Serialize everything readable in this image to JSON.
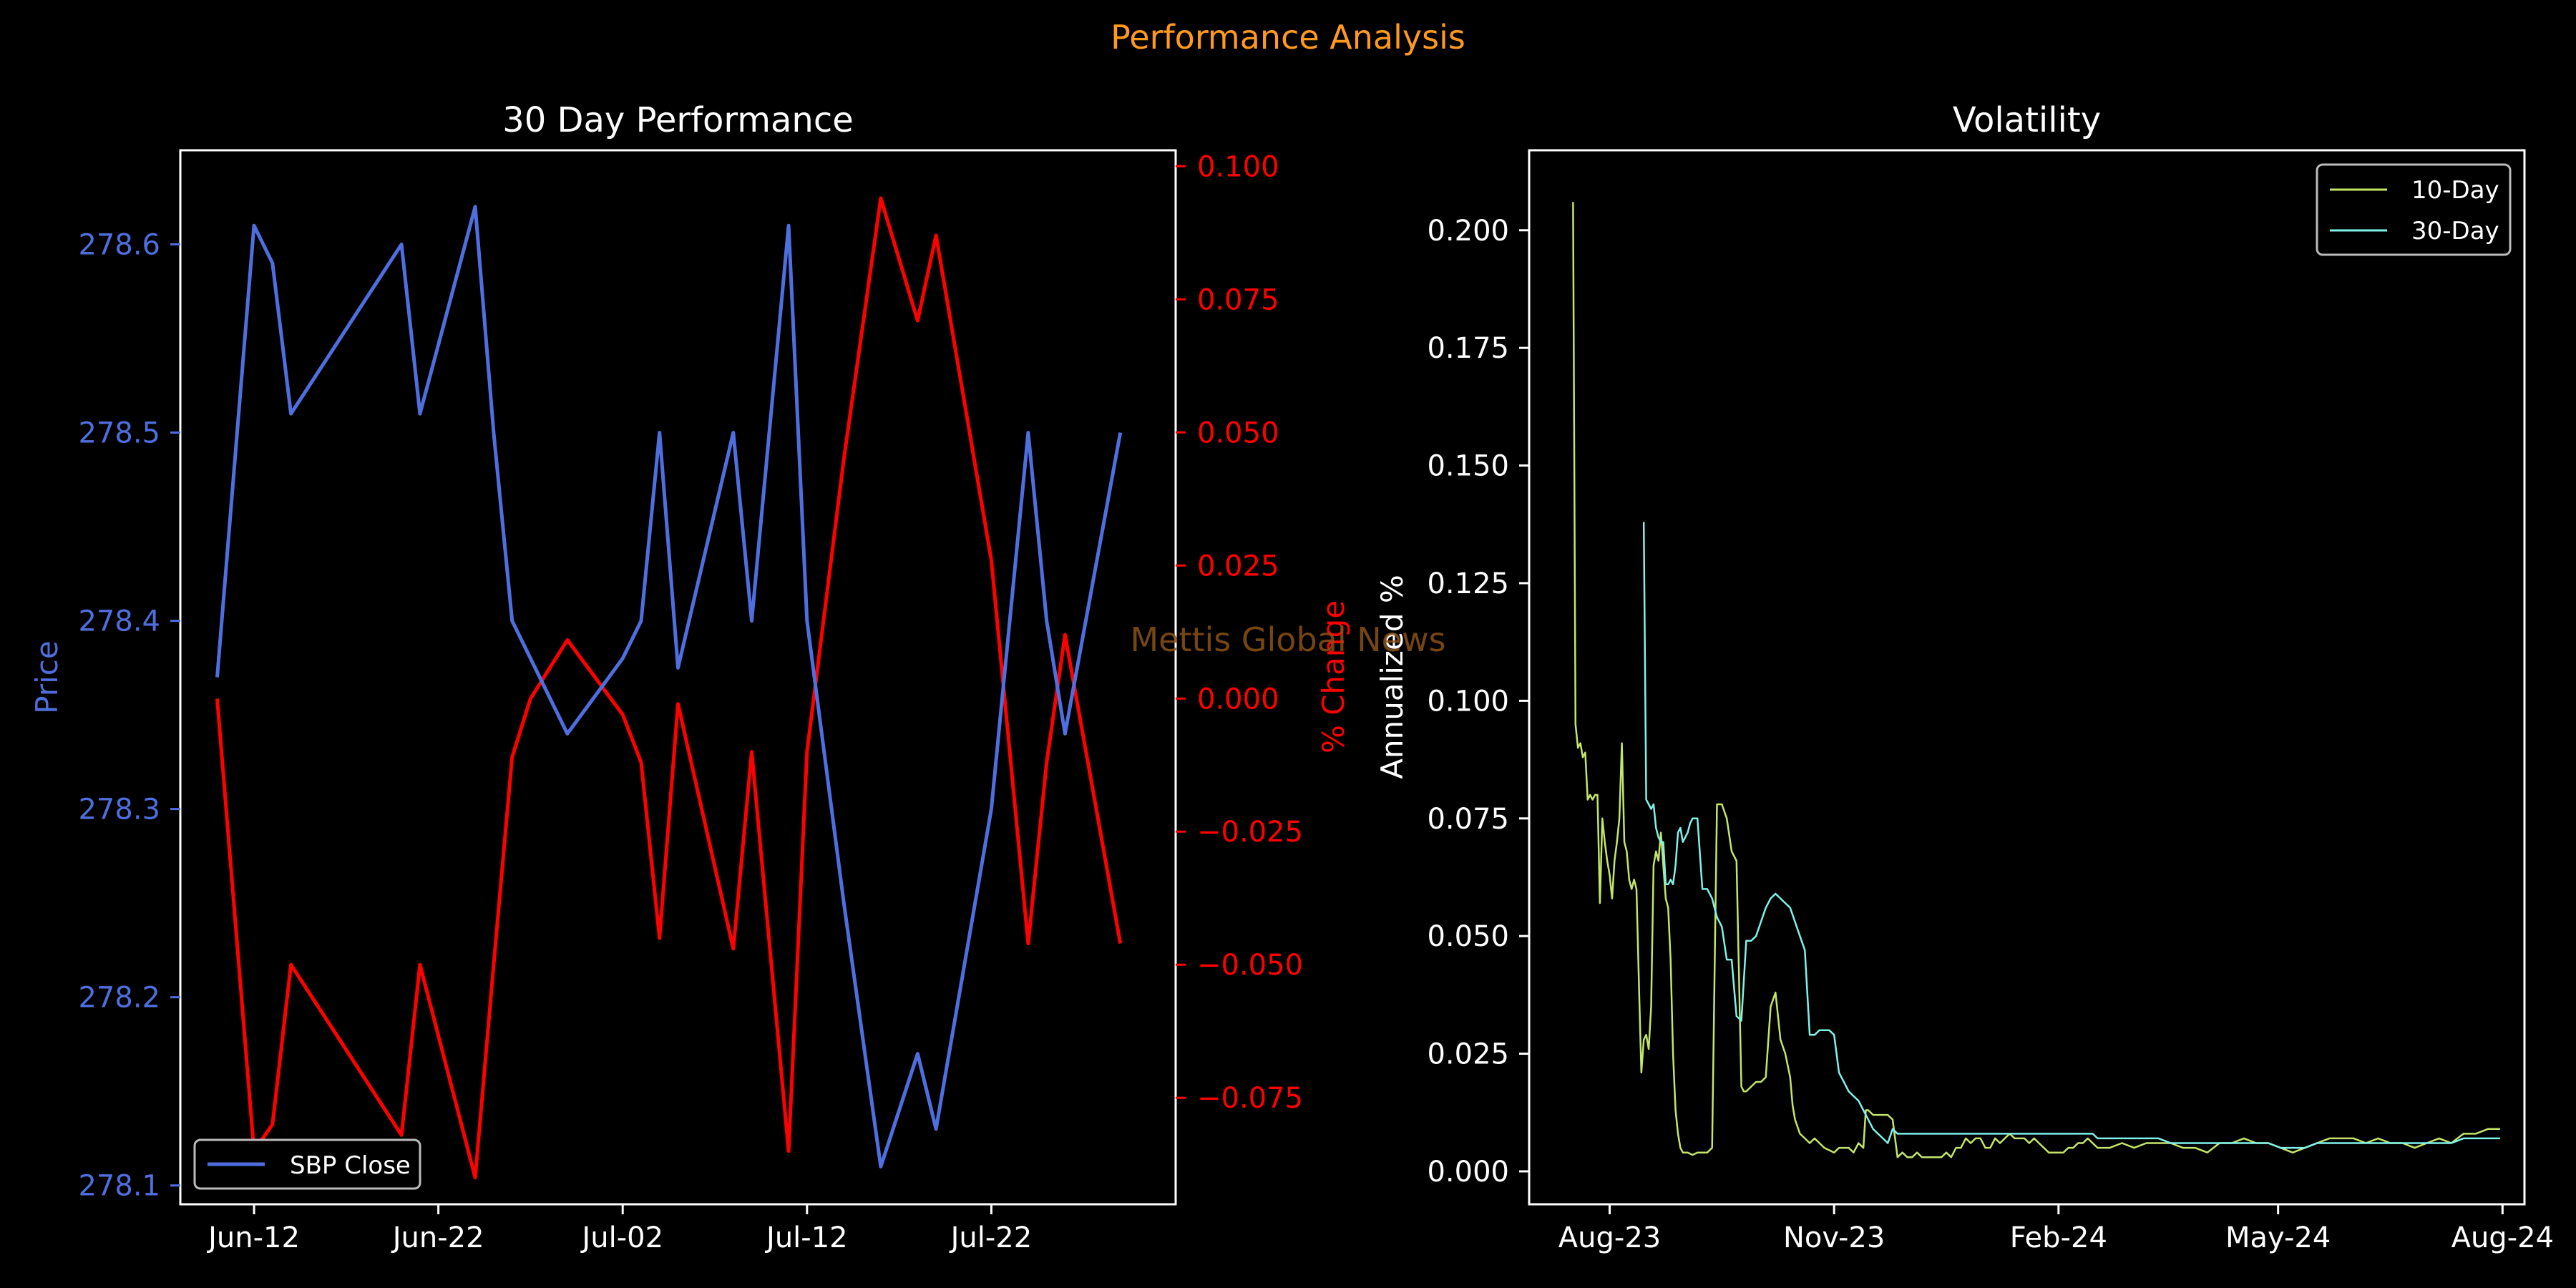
{
  "figure": {
    "title": "Performance Analysis",
    "watermark": "Mettis Global News",
    "colors": {
      "background": "#000000",
      "foreground": "#ffffff",
      "title": "#ff9a1f",
      "price": "#4f6fe0",
      "pct": "#ff0000",
      "vol10": "#c4e56a",
      "vol30": "#7ff2ea",
      "watermark": "#8a5216"
    }
  },
  "chart_data": [
    {
      "type": "line",
      "title": "30 Day Performance",
      "dual_axis": true,
      "x_ticks": [
        "Jun-12",
        "Jun-22",
        "Jul-02",
        "Jul-12",
        "Jul-22"
      ],
      "x_tick_days": [
        0,
        10,
        20,
        30,
        40
      ],
      "xlim": [
        -4,
        50
      ],
      "y_left": {
        "label": "Price",
        "lim": [
          278.09,
          278.65
        ],
        "ticks": [
          "278.1",
          "278.2",
          "278.3",
          "278.4",
          "278.5",
          "278.6"
        ],
        "tick_values": [
          278.1,
          278.2,
          278.3,
          278.4,
          278.5,
          278.6
        ]
      },
      "y_right": {
        "label": "% Change",
        "lim": [
          -0.095,
          0.103
        ],
        "ticks": [
          "−0.075",
          "−0.050",
          "−0.025",
          "0.000",
          "0.025",
          "0.050",
          "0.075",
          "0.100"
        ],
        "tick_values": [
          -0.075,
          -0.05,
          -0.025,
          0,
          0.025,
          0.05,
          0.075,
          0.1
        ]
      },
      "legend": {
        "position": "lower-left",
        "entries": [
          "SBP Close"
        ]
      },
      "x": [
        -2,
        0,
        1,
        2,
        8,
        9,
        12,
        13,
        14,
        15,
        17,
        20,
        21,
        22,
        23,
        26,
        27,
        29,
        30,
        32,
        34,
        36,
        37,
        40,
        42,
        43,
        44,
        47
      ],
      "series": [
        {
          "name": "SBP Close",
          "axis": "left",
          "values": [
            278.37,
            278.61,
            278.59,
            278.51,
            278.6,
            278.51,
            278.62,
            278.5,
            278.4,
            278.38,
            278.34,
            278.38,
            278.4,
            278.5,
            278.375,
            278.5,
            278.4,
            278.61,
            278.4,
            278.25,
            278.11,
            278.17,
            278.13,
            278.3,
            278.5,
            278.4,
            278.34,
            278.5
          ]
        },
        {
          "series_role": "pct change",
          "axis": "right",
          "values": [
            0,
            -0.085,
            -0.08,
            -0.05,
            -0.082,
            -0.05,
            -0.09,
            -0.05,
            -0.011,
            0,
            0.011,
            -0.003,
            -0.012,
            -0.045,
            -0.001,
            -0.047,
            -0.01,
            -0.085,
            -0.01,
            0.045,
            0.094,
            0.071,
            0.087,
            0.026,
            -0.046,
            -0.012,
            0.012,
            -0.046
          ]
        }
      ]
    },
    {
      "type": "line",
      "title": "Volatility",
      "ylabel": "Annualized %",
      "x_ticks": [
        "Aug-23",
        "Nov-23",
        "Feb-24",
        "May-24",
        "Aug-24"
      ],
      "x_tick_days": [
        0,
        92,
        184,
        274,
        366
      ],
      "xlim": [
        -33,
        375
      ],
      "ylim": [
        -0.007,
        0.217
      ],
      "y_ticks": [
        "0.000",
        "0.025",
        "0.050",
        "0.075",
        "0.100",
        "0.125",
        "0.150",
        "0.175",
        "0.200"
      ],
      "y_tick_values": [
        0,
        0.025,
        0.05,
        0.075,
        0.1,
        0.125,
        0.15,
        0.175,
        0.2
      ],
      "legend": {
        "position": "upper-right",
        "entries": [
          "10-Day",
          "30-Day"
        ]
      },
      "series": [
        {
          "name": "10-Day",
          "x": [
            -15,
            -14,
            -13,
            -12,
            -11,
            -10,
            -9,
            -8,
            -7,
            -6,
            -5,
            -4,
            -3,
            -2,
            -1,
            0,
            1,
            2,
            3,
            4,
            5,
            6,
            7,
            8,
            9,
            10,
            11,
            12,
            13,
            14,
            15,
            16,
            17,
            18,
            19,
            20,
            21,
            22,
            23,
            24,
            25,
            26,
            27,
            28,
            29,
            30,
            32,
            34,
            36,
            38,
            40,
            42,
            44,
            46,
            48,
            50,
            52,
            54,
            55,
            56,
            58,
            60,
            62,
            64,
            66,
            68,
            70,
            72,
            74,
            75,
            76,
            78,
            80,
            82,
            84,
            86,
            88,
            90,
            92,
            94,
            96,
            98,
            100,
            102,
            104,
            105,
            106,
            108,
            110,
            112,
            114,
            116,
            118,
            120,
            122,
            124,
            126,
            128,
            130,
            132,
            134,
            136,
            138,
            140,
            142,
            144,
            146,
            148,
            150,
            152,
            154,
            156,
            158,
            160,
            162,
            164,
            166,
            168,
            170,
            172,
            174,
            176,
            178,
            180,
            182,
            184,
            186,
            188,
            190,
            192,
            194,
            196,
            200,
            205,
            210,
            215,
            220,
            225,
            230,
            235,
            240,
            245,
            250,
            255,
            260,
            265,
            270,
            275,
            280,
            285,
            290,
            295,
            300,
            305,
            310,
            315,
            320,
            325,
            330,
            335,
            340,
            345,
            350,
            355,
            360,
            365
          ],
          "values": [
            0.206,
            0.095,
            0.09,
            0.091,
            0.088,
            0.089,
            0.079,
            0.08,
            0.079,
            0.08,
            0.08,
            0.057,
            0.075,
            0.07,
            0.066,
            0.063,
            0.058,
            0.066,
            0.07,
            0.075,
            0.091,
            0.07,
            0.068,
            0.062,
            0.06,
            0.062,
            0.06,
            0.04,
            0.021,
            0.028,
            0.029,
            0.026,
            0.035,
            0.065,
            0.068,
            0.066,
            0.072,
            0.065,
            0.058,
            0.056,
            0.045,
            0.025,
            0.013,
            0.008,
            0.005,
            0.004,
            0.004,
            0.0035,
            0.004,
            0.004,
            0.004,
            0.005,
            0.078,
            0.078,
            0.075,
            0.068,
            0.066,
            0.018,
            0.017,
            0.017,
            0.018,
            0.019,
            0.019,
            0.02,
            0.035,
            0.038,
            0.028,
            0.025,
            0.02,
            0.014,
            0.011,
            0.008,
            0.007,
            0.006,
            0.007,
            0.006,
            0.005,
            0.0045,
            0.004,
            0.005,
            0.005,
            0.005,
            0.004,
            0.006,
            0.005,
            0.013,
            0.013,
            0.012,
            0.012,
            0.012,
            0.012,
            0.011,
            0.003,
            0.004,
            0.003,
            0.003,
            0.004,
            0.003,
            0.003,
            0.003,
            0.003,
            0.003,
            0.004,
            0.003,
            0.005,
            0.005,
            0.007,
            0.006,
            0.007,
            0.007,
            0.005,
            0.005,
            0.007,
            0.006,
            0.007,
            0.008,
            0.007,
            0.007,
            0.007,
            0.006,
            0.007,
            0.006,
            0.005,
            0.004,
            0.004,
            0.004,
            0.004,
            0.005,
            0.005,
            0.006,
            0.006,
            0.007,
            0.005,
            0.005,
            0.006,
            0.005,
            0.006,
            0.006,
            0.006,
            0.005,
            0.005,
            0.004,
            0.006,
            0.006,
            0.007,
            0.006,
            0.006,
            0.005,
            0.004,
            0.005,
            0.006,
            0.007,
            0.007,
            0.007,
            0.006,
            0.007,
            0.006,
            0.006,
            0.005,
            0.006,
            0.007,
            0.006,
            0.008,
            0.008,
            0.009,
            0.009
          ]
        },
        {
          "name": "30-Day",
          "x": [
            14,
            15,
            16,
            17,
            18,
            19,
            20,
            21,
            22,
            23,
            24,
            25,
            26,
            27,
            28,
            29,
            30,
            31,
            32,
            33,
            34,
            35,
            36,
            38,
            40,
            42,
            44,
            46,
            48,
            50,
            52,
            54,
            56,
            58,
            60,
            62,
            64,
            66,
            68,
            70,
            72,
            74,
            76,
            78,
            80,
            82,
            84,
            86,
            88,
            90,
            92,
            94,
            96,
            98,
            100,
            102,
            104,
            106,
            108,
            110,
            112,
            114,
            116,
            118,
            120,
            122,
            124,
            126,
            128,
            130,
            132,
            134,
            136,
            138,
            140,
            142,
            144,
            146,
            148,
            150,
            152,
            154,
            156,
            158,
            160,
            162,
            164,
            166,
            168,
            170,
            172,
            174,
            176,
            178,
            180,
            182,
            184,
            186,
            188,
            190,
            192,
            194,
            196,
            198,
            200,
            205,
            210,
            215,
            220,
            225,
            230,
            235,
            240,
            245,
            250,
            255,
            260,
            265,
            270,
            275,
            280,
            285,
            290,
            295,
            300,
            305,
            310,
            315,
            320,
            325,
            330,
            335,
            340,
            345,
            350,
            355,
            360,
            365
          ],
          "values": [
            0.138,
            0.079,
            0.078,
            0.077,
            0.078,
            0.073,
            0.071,
            0.07,
            0.07,
            0.061,
            0.061,
            0.062,
            0.061,
            0.065,
            0.072,
            0.073,
            0.07,
            0.071,
            0.072,
            0.074,
            0.075,
            0.075,
            0.075,
            0.06,
            0.06,
            0.058,
            0.054,
            0.052,
            0.045,
            0.045,
            0.033,
            0.032,
            0.049,
            0.049,
            0.05,
            0.053,
            0.056,
            0.058,
            0.059,
            0.058,
            0.057,
            0.056,
            0.053,
            0.05,
            0.047,
            0.029,
            0.029,
            0.03,
            0.03,
            0.03,
            0.029,
            0.021,
            0.019,
            0.017,
            0.016,
            0.015,
            0.013,
            0.011,
            0.009,
            0.008,
            0.007,
            0.006,
            0.009,
            0.008,
            0.008,
            0.008,
            0.008,
            0.008,
            0.008,
            0.008,
            0.008,
            0.008,
            0.008,
            0.008,
            0.008,
            0.008,
            0.008,
            0.008,
            0.008,
            0.008,
            0.008,
            0.008,
            0.008,
            0.008,
            0.008,
            0.008,
            0.008,
            0.008,
            0.008,
            0.008,
            0.008,
            0.008,
            0.008,
            0.008,
            0.008,
            0.008,
            0.008,
            0.008,
            0.008,
            0.008,
            0.008,
            0.008,
            0.008,
            0.008,
            0.007,
            0.007,
            0.007,
            0.007,
            0.007,
            0.007,
            0.006,
            0.006,
            0.006,
            0.006,
            0.006,
            0.006,
            0.006,
            0.006,
            0.006,
            0.005,
            0.005,
            0.005,
            0.006,
            0.006,
            0.006,
            0.006,
            0.006,
            0.006,
            0.006,
            0.006,
            0.006,
            0.006,
            0.006,
            0.006,
            0.007,
            0.007,
            0.007,
            0.007
          ]
        }
      ]
    }
  ]
}
